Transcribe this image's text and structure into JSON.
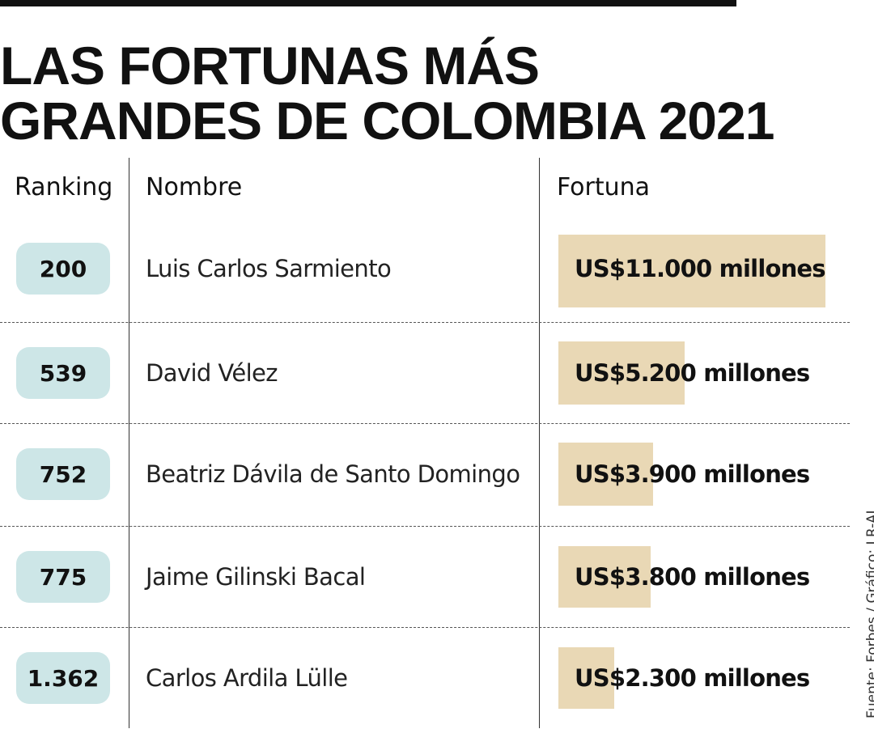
{
  "title": {
    "line1": "LAS FORTUNAS MÁS",
    "line2": "GRANDES DE COLOMBIA 2021"
  },
  "headers": {
    "ranking": "Ranking",
    "nombre": "Nombre",
    "fortuna": "Fortuna"
  },
  "source": "Fuente: Forbes / Gráfico: LR-AL",
  "colors": {
    "rank_pill": "#cde6e7",
    "bar": "#e9d8b5",
    "text": "#111111"
  },
  "chart_data": {
    "type": "bar",
    "title": "LAS FORTUNAS MÁS GRANDES DE COLOMBIA 2021",
    "categories": [
      "Luis Carlos Sarmiento",
      "David Vélez",
      "Beatriz Dávila de Santo Domingo",
      "Jaime Gilinski Bacal",
      "Carlos Ardila Lülle"
    ],
    "rankings": [
      "200",
      "539",
      "752",
      "775",
      "1.362"
    ],
    "values": [
      11000,
      5200,
      3900,
      3800,
      2300
    ],
    "value_labels": [
      "US$11.000 millones",
      "US$5.200 millones",
      "US$3.900 millones",
      "US$3.800 millones",
      "US$2.300 millones"
    ],
    "unit": "US$ millones",
    "orientation": "horizontal",
    "xlim": [
      0,
      11000
    ],
    "grid": false,
    "legend": "none"
  }
}
